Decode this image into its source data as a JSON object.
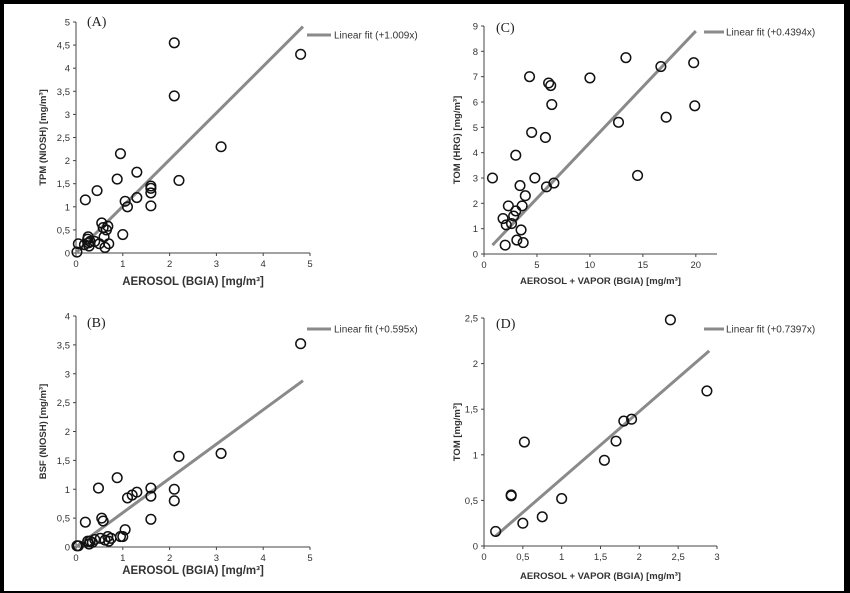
{
  "chart_data": [
    {
      "type": "scatter",
      "panel_label": "(A)",
      "xlabel": "AEROSOL (BGIA) [mg/m³]",
      "ylabel": "TPM (NIOSH) [mg/m³]",
      "xlim": [
        0,
        5
      ],
      "ylim": [
        0,
        5
      ],
      "xticks": [
        "0",
        "1",
        "2",
        "3",
        "4",
        "5"
      ],
      "yticks": [
        "0",
        "0,5",
        "1",
        "1,5",
        "2",
        "2,5",
        "3",
        "3,5",
        "4",
        "4,5",
        "5"
      ],
      "legend": "Linear fit (+1.009x)",
      "fit_line": [
        [
          0,
          0
        ],
        [
          4.85,
          4.9
        ]
      ],
      "points": [
        [
          0.02,
          0.02
        ],
        [
          0.05,
          0.2
        ],
        [
          0.18,
          0.18
        ],
        [
          0.2,
          1.15
        ],
        [
          0.25,
          0.3
        ],
        [
          0.26,
          0.35
        ],
        [
          0.27,
          0.22
        ],
        [
          0.28,
          0.15
        ],
        [
          0.3,
          0.25
        ],
        [
          0.4,
          0.25
        ],
        [
          0.45,
          1.35
        ],
        [
          0.5,
          0.2
        ],
        [
          0.55,
          0.65
        ],
        [
          0.58,
          0.55
        ],
        [
          0.6,
          0.35
        ],
        [
          0.62,
          0.12
        ],
        [
          0.65,
          0.5
        ],
        [
          0.68,
          0.58
        ],
        [
          0.7,
          0.2
        ],
        [
          0.88,
          1.6
        ],
        [
          0.95,
          2.15
        ],
        [
          1.0,
          0.4
        ],
        [
          1.05,
          1.12
        ],
        [
          1.1,
          1.0
        ],
        [
          1.3,
          1.2
        ],
        [
          1.3,
          1.75
        ],
        [
          1.6,
          1.4
        ],
        [
          1.6,
          1.3
        ],
        [
          1.6,
          1.02
        ],
        [
          1.6,
          1.45
        ],
        [
          2.1,
          4.55
        ],
        [
          2.1,
          3.4
        ],
        [
          2.2,
          1.57
        ],
        [
          3.1,
          2.3
        ],
        [
          4.8,
          4.3
        ]
      ]
    },
    {
      "type": "scatter",
      "panel_label": "(B)",
      "xlabel": "AEROSOL (BGIA) [mg/m³]",
      "ylabel": "BSF (NIOSH) [mg/m³]",
      "xlim": [
        0,
        5
      ],
      "ylim": [
        0,
        4
      ],
      "xticks": [
        "0",
        "1",
        "2",
        "3",
        "4",
        "5"
      ],
      "yticks": [
        "0",
        "0,5",
        "1",
        "1,5",
        "2",
        "2,5",
        "3",
        "3,5",
        "4"
      ],
      "legend": "Linear fit (+0.595x)",
      "fit_line": [
        [
          0,
          0
        ],
        [
          4.85,
          2.88
        ]
      ],
      "points": [
        [
          0.02,
          0.02
        ],
        [
          0.05,
          0.02
        ],
        [
          0.2,
          0.43
        ],
        [
          0.25,
          0.1
        ],
        [
          0.28,
          0.05
        ],
        [
          0.3,
          0.1
        ],
        [
          0.35,
          0.08
        ],
        [
          0.4,
          0.13
        ],
        [
          0.48,
          1.02
        ],
        [
          0.52,
          0.15
        ],
        [
          0.55,
          0.5
        ],
        [
          0.58,
          0.45
        ],
        [
          0.62,
          0.12
        ],
        [
          0.68,
          0.18
        ],
        [
          0.7,
          0.1
        ],
        [
          0.75,
          0.15
        ],
        [
          0.88,
          1.2
        ],
        [
          0.95,
          0.18
        ],
        [
          1.0,
          0.18
        ],
        [
          1.05,
          0.3
        ],
        [
          1.1,
          0.85
        ],
        [
          1.2,
          0.9
        ],
        [
          1.3,
          0.95
        ],
        [
          1.6,
          0.48
        ],
        [
          1.6,
          1.02
        ],
        [
          1.6,
          0.88
        ],
        [
          2.1,
          1.0
        ],
        [
          2.1,
          0.8
        ],
        [
          2.2,
          1.57
        ],
        [
          3.1,
          1.62
        ],
        [
          4.8,
          3.52
        ]
      ]
    },
    {
      "type": "scatter",
      "panel_label": "(C)",
      "xlabel": "AEROSOL + VAPOR (BGIA) [mg/m³]",
      "ylabel": "TOM (HRG) [mg/m³]",
      "xlim": [
        0,
        22
      ],
      "ylim": [
        0,
        9
      ],
      "xticks": [
        "0",
        "5",
        "10",
        "15",
        "20"
      ],
      "yticks": [
        "0",
        "1",
        "2",
        "3",
        "4",
        "5",
        "6",
        "7",
        "8",
        "9"
      ],
      "legend": "Linear fit (+0.4394x)",
      "fit_line": [
        [
          0.8,
          0.35
        ],
        [
          20,
          8.8
        ]
      ],
      "points": [
        [
          0.8,
          3.0
        ],
        [
          1.8,
          1.4
        ],
        [
          2.1,
          1.15
        ],
        [
          2.3,
          1.9
        ],
        [
          2.6,
          1.2
        ],
        [
          2.8,
          1.5
        ],
        [
          3.0,
          3.9
        ],
        [
          3.0,
          1.7
        ],
        [
          3.1,
          0.55
        ],
        [
          3.4,
          2.7
        ],
        [
          3.5,
          0.95
        ],
        [
          3.6,
          1.9
        ],
        [
          3.7,
          0.45
        ],
        [
          3.9,
          2.3
        ],
        [
          4.3,
          7.0
        ],
        [
          4.5,
          4.8
        ],
        [
          4.8,
          3.0
        ],
        [
          5.8,
          4.6
        ],
        [
          5.9,
          2.65
        ],
        [
          6.1,
          6.75
        ],
        [
          6.3,
          6.65
        ],
        [
          6.4,
          5.9
        ],
        [
          6.6,
          2.8
        ],
        [
          10.0,
          6.95
        ],
        [
          12.7,
          5.2
        ],
        [
          13.4,
          7.75
        ],
        [
          14.5,
          3.1
        ],
        [
          16.7,
          7.4
        ],
        [
          17.2,
          5.4
        ],
        [
          19.8,
          7.55
        ],
        [
          19.9,
          5.85
        ],
        [
          2.0,
          0.35
        ]
      ]
    },
    {
      "type": "scatter",
      "panel_label": "(D)",
      "xlabel": "AEROSOL + VAPOR (BGIA) [mg/m³]",
      "ylabel": "TOM [mg/m³]",
      "xlim": [
        0,
        3
      ],
      "ylim": [
        0,
        2.5
      ],
      "xticks": [
        "0",
        "0,5",
        "1",
        "1,5",
        "2",
        "2,5",
        "3"
      ],
      "yticks": [
        "0",
        "0,5",
        "1",
        "1,5",
        "2",
        "2,5"
      ],
      "legend": "Linear fit (+0.7397x)",
      "fit_line": [
        [
          0.15,
          0.11
        ],
        [
          2.9,
          2.14
        ]
      ],
      "points": [
        [
          0.15,
          0.16
        ],
        [
          0.35,
          0.55
        ],
        [
          0.35,
          0.56
        ],
        [
          0.5,
          0.25
        ],
        [
          0.52,
          1.14
        ],
        [
          0.75,
          0.32
        ],
        [
          1.0,
          0.52
        ],
        [
          1.55,
          0.94
        ],
        [
          1.7,
          1.15
        ],
        [
          1.8,
          1.37
        ],
        [
          1.9,
          1.39
        ],
        [
          2.4,
          2.48
        ],
        [
          2.87,
          1.7
        ]
      ]
    }
  ]
}
